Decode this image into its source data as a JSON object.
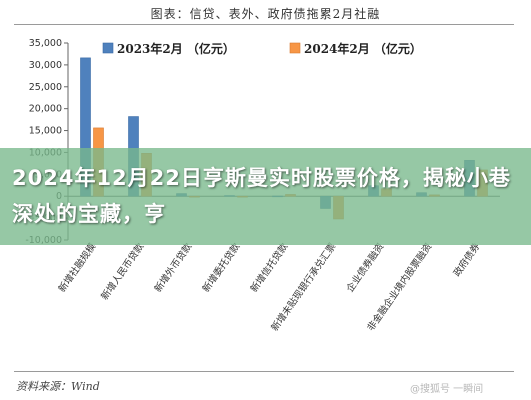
{
  "page": {
    "title": "图表：信贷、表外、政府债拖累2月社融",
    "source": "资料来源：Wind",
    "watermark": "@搜狐号 一瞬间",
    "banner_text": "2024年12月22日亨斯曼实时股票价格，揭秘小巷深处的宝藏，亨"
  },
  "colors": {
    "series_2023": "#4f81bd",
    "series_2024": "#f79646",
    "banner_bg": "#78b98c",
    "banner_text": "#ffffff"
  },
  "chart_data": {
    "type": "bar",
    "title": "图表：信贷、表外、政府债拖累2月社融",
    "xlabel": "",
    "ylabel": "",
    "ylim": [
      -10000,
      35000
    ],
    "yticks": [
      -10000,
      -5000,
      0,
      5000,
      10000,
      15000,
      20000,
      25000,
      30000,
      35000
    ],
    "ytick_labels": [
      "-10,000",
      "-5,000",
      "0",
      "5,000",
      "10,000",
      "15,000",
      "20,000",
      "25,000",
      "30,000",
      "35,000"
    ],
    "grid": false,
    "legend_position": "top",
    "categories": [
      "新增社融规模",
      "新增人民币贷款",
      "新增外币贷款",
      "新增委托贷款",
      "新增信托贷款",
      "新增未贴现银行承兑汇票",
      "企业债券融资",
      "非金融企业境内股票融资",
      "政府债券"
    ],
    "series": [
      {
        "name": "2023年2月 （亿元）",
        "values": [
          31600,
          18200,
          600,
          150,
          50,
          -2800,
          2400,
          800,
          8200
        ]
      },
      {
        "name": "2024年2月 （亿元）",
        "values": [
          15600,
          9800,
          -200,
          -200,
          400,
          -5200,
          1700,
          300,
          6000
        ]
      }
    ]
  }
}
